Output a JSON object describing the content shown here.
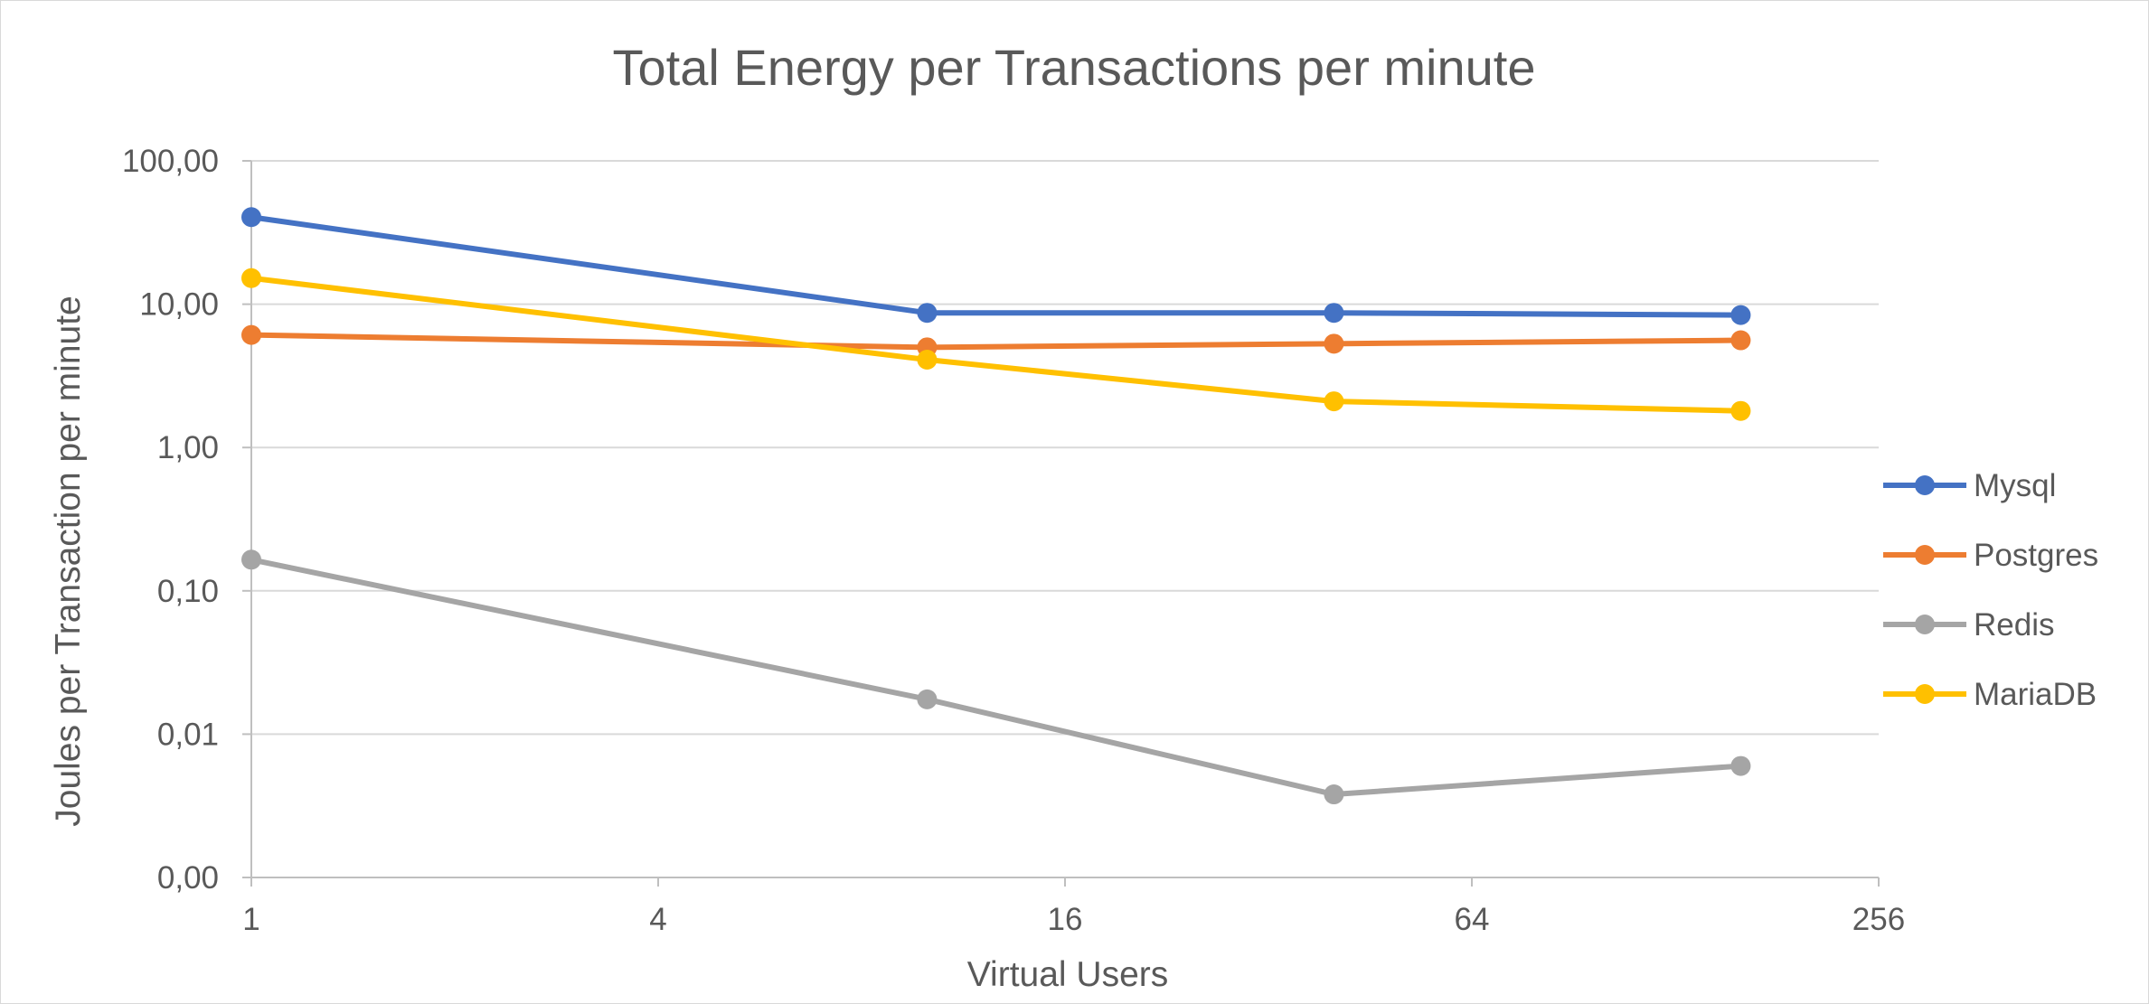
{
  "chart_data": {
    "type": "line",
    "title": "Total Energy per Transactions per minute",
    "xlabel": "Virtual Users",
    "ylabel": "Joules per Transaction per minute",
    "x_scale": "log2",
    "y_scale": "log10",
    "x_ticks": [
      {
        "value": 1,
        "label": "1"
      },
      {
        "value": 4,
        "label": "4"
      },
      {
        "value": 16,
        "label": "16"
      },
      {
        "value": 64,
        "label": "64"
      },
      {
        "value": 256,
        "label": "256"
      }
    ],
    "y_ticks": [
      {
        "value": 0.001,
        "label": "0,00"
      },
      {
        "value": 0.01,
        "label": "0,01"
      },
      {
        "value": 0.1,
        "label": "0,10"
      },
      {
        "value": 1,
        "label": "1,00"
      },
      {
        "value": 10,
        "label": "10,00"
      },
      {
        "value": 100,
        "label": "100,00"
      }
    ],
    "xlim": [
      1,
      256
    ],
    "ylim": [
      0.001,
      100
    ],
    "grid": "horizontal",
    "legend_position": "right",
    "x": [
      1,
      10,
      40,
      160
    ],
    "series": [
      {
        "name": "Mysql",
        "color": "#4472C4",
        "values": [
          40.5,
          8.7,
          8.7,
          8.4
        ]
      },
      {
        "name": "Postgres",
        "color": "#ED7D31",
        "values": [
          6.1,
          5.0,
          5.3,
          5.6
        ]
      },
      {
        "name": "Redis",
        "color": "#A5A5A5",
        "values": [
          0.165,
          0.0175,
          0.0038,
          0.006
        ]
      },
      {
        "name": "MariaDB",
        "color": "#FFC000",
        "values": [
          15.2,
          4.1,
          2.1,
          1.8
        ]
      }
    ]
  }
}
